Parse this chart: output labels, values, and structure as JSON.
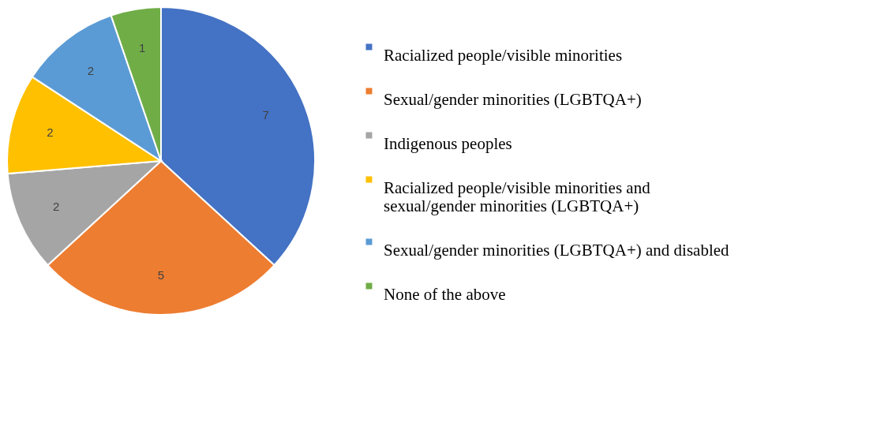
{
  "chart_data": {
    "type": "pie",
    "categories": [
      "Racialized people/visible minorities",
      "Sexual/gender minorities (LGBTQA+)",
      "Indigenous peoples",
      "Racialized people/visible minorities and sexual/gender minorities (LGBTQA+)",
      "Sexual/gender minorities (LGBTQA+) and disabled",
      "None of the above"
    ],
    "values": [
      7,
      5,
      2,
      2,
      2,
      1
    ],
    "colors": [
      "#4472c4",
      "#ed7d31",
      "#a5a5a5",
      "#ffc000",
      "#5b9bd5",
      "#70ad47"
    ],
    "data_labels": true,
    "legend": "right"
  }
}
